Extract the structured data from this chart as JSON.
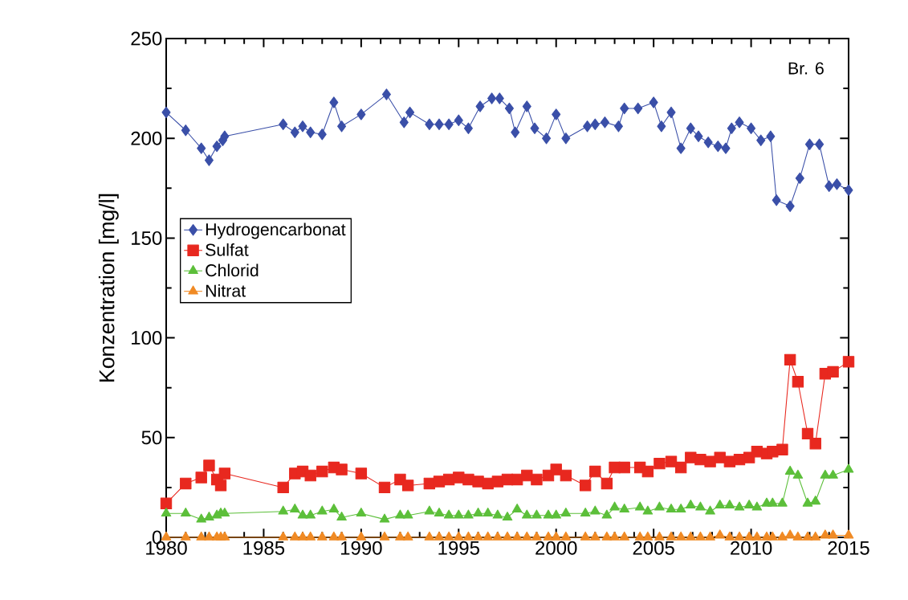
{
  "chart_data": {
    "type": "line",
    "ylabel": "Konzentration [mg/l]",
    "x": [
      1980,
      1981,
      1981.8,
      1982.2,
      1982.6,
      1982.8,
      1983,
      1986,
      1986.6,
      1987,
      1987.4,
      1988,
      1988.6,
      1989,
      1990,
      1991.2,
      1992,
      1992.4,
      1993.5,
      1994,
      1994.5,
      1995,
      1995.5,
      1996,
      1996.5,
      1997,
      1997.5,
      1998,
      1998.5,
      1999,
      1999.6,
      2000,
      2000.5,
      2001.5,
      2002,
      2002.6,
      2003,
      2003.5,
      2004.3,
      2004.7,
      2005.3,
      2005.9,
      2006.4,
      2006.9,
      2007.4,
      2007.9,
      2008.4,
      2008.9,
      2009.4,
      2009.9,
      2010.3,
      2010.8,
      2011.1,
      2011.6,
      2012,
      2012.4,
      2012.9,
      2013.3,
      2013.8,
      2014.2,
      2015
    ],
    "series": [
      {
        "name": "Hydrogencarbonat",
        "color": "#3a4fa8",
        "marker": "diamond",
        "x": [
          1980,
          1981,
          1981.8,
          1982.2,
          1982.6,
          1982.9,
          1983,
          1986,
          1986.6,
          1987,
          1987.4,
          1988,
          1988.6,
          1989,
          1990,
          1991.3,
          1992.2,
          1992.5,
          1993.5,
          1994,
          1994.5,
          1995,
          1995.5,
          1996.1,
          1996.7,
          1997.1,
          1997.6,
          1997.9,
          1998.5,
          1998.9,
          1999.5,
          2000,
          2000.5,
          2001.6,
          2002,
          2002.5,
          2003.2,
          2003.5,
          2004.2,
          2005,
          2005.4,
          2005.9,
          2006.4,
          2006.9,
          2007.3,
          2007.8,
          2008.3,
          2008.7,
          2009,
          2009.4,
          2010,
          2010.5,
          2011,
          2011.3,
          2012,
          2012.5,
          2013,
          2013.5,
          2014,
          2014.4,
          2015
        ],
        "values": [
          213,
          204,
          195,
          189,
          196,
          199,
          201,
          207,
          203,
          206,
          203,
          202,
          218,
          206,
          212,
          222,
          208,
          213,
          207,
          207,
          207,
          209,
          205,
          216,
          220,
          220,
          215,
          203,
          216,
          205,
          200,
          212,
          200,
          206,
          207,
          208,
          206,
          215,
          215,
          218,
          206,
          213,
          195,
          205,
          201,
          198,
          196,
          195,
          205,
          208,
          205,
          199,
          201,
          169,
          166,
          180,
          197,
          197,
          176,
          177,
          174
        ]
      },
      {
        "name": "Sulfat",
        "color": "#e8281f",
        "marker": "square",
        "values": [
          17,
          27,
          30,
          36,
          29,
          26,
          32,
          25,
          32,
          33,
          31,
          33,
          35,
          34,
          32,
          25,
          29,
          26,
          27,
          28,
          29,
          30,
          29,
          28,
          27,
          28,
          29,
          29,
          31,
          29,
          31,
          34,
          31,
          26,
          33,
          27,
          35,
          35,
          35,
          33,
          37,
          38,
          35,
          40,
          39,
          38,
          40,
          38,
          39,
          40,
          43,
          42,
          43,
          44,
          89,
          78,
          52,
          47,
          82,
          83,
          88
        ]
      },
      {
        "name": "Chlorid",
        "color": "#5cbf3a",
        "marker": "triangle",
        "values": [
          12,
          12,
          9,
          10,
          11,
          12,
          12,
          13,
          14,
          11,
          11,
          13,
          14,
          10,
          12,
          9,
          11,
          11,
          13,
          12,
          11,
          11,
          11,
          12,
          12,
          11,
          10,
          14,
          11,
          11,
          11,
          11,
          12,
          12,
          13,
          11,
          15,
          14,
          15,
          13,
          15,
          14,
          14,
          16,
          15,
          13,
          16,
          16,
          15,
          16,
          15,
          17,
          17,
          17,
          33,
          31,
          17,
          18,
          31,
          31,
          34
        ]
      },
      {
        "name": "Nitrat",
        "color": "#f08a24",
        "marker": "triangle-down",
        "values": [
          0,
          0,
          0,
          0,
          0,
          0,
          0,
          0,
          0,
          0,
          0,
          0,
          0,
          0,
          0,
          0,
          0,
          0,
          0,
          0,
          0,
          0,
          0,
          0,
          0,
          0,
          0,
          0,
          0,
          0,
          0,
          0,
          0,
          0,
          0,
          0,
          0,
          0,
          0,
          0,
          0,
          0,
          0,
          0,
          0,
          0,
          1,
          0,
          0,
          0,
          0,
          0,
          0,
          0,
          1,
          0,
          0,
          0,
          1,
          1,
          1
        ]
      }
    ],
    "xlim": [
      1980,
      2015
    ],
    "xticks": [
      1980,
      1985,
      1990,
      1995,
      2000,
      2005,
      2010,
      2015
    ],
    "ylim": [
      0,
      250
    ],
    "yticks": [
      0,
      50,
      100,
      150,
      200,
      250
    ],
    "grid": false,
    "legend": "left",
    "line_style": "solid",
    "annotations": [
      "Br. 6"
    ]
  }
}
